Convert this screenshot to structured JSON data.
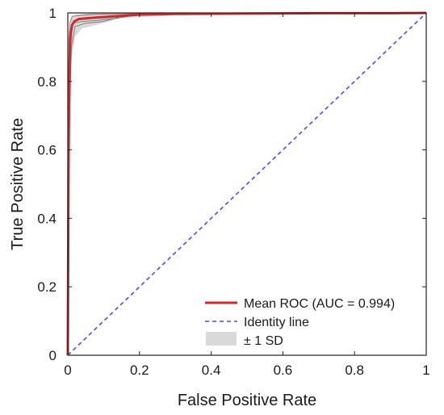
{
  "chart_data": {
    "type": "line",
    "xlabel": "False Positive Rate",
    "ylabel": "True Positive Rate",
    "xlim": [
      0,
      1
    ],
    "ylim": [
      0,
      1
    ],
    "x_ticks": [
      "0",
      "0.2",
      "0.4",
      "0.6",
      "0.8",
      "1"
    ],
    "y_ticks": [
      "0",
      "0.2",
      "0.4",
      "0.6",
      "0.8",
      "1"
    ],
    "grid": false,
    "legend_position": "bottom-right",
    "series": [
      {
        "name": "Mean ROC (AUC = 0.994)",
        "color": "#d62728",
        "style": "solid",
        "x": [
          0,
          0.002,
          0.004,
          0.006,
          0.008,
          0.012,
          0.018,
          0.03,
          0.06,
          0.1,
          0.2,
          0.3,
          0.5,
          0.7,
          0.9,
          1.0
        ],
        "y": [
          0,
          0.55,
          0.8,
          0.9,
          0.94,
          0.965,
          0.975,
          0.982,
          0.985,
          0.988,
          0.995,
          0.997,
          0.998,
          0.999,
          0.999,
          1.0
        ]
      },
      {
        "name": "Identity line",
        "color": "#4a4aff",
        "style": "dashed",
        "x": [
          0,
          1
        ],
        "y": [
          0,
          1
        ]
      },
      {
        "name": "± 1 SD",
        "color": "#d9d9d9",
        "style": "band",
        "x": [
          0,
          0.003,
          0.006,
          0.01,
          0.02,
          0.04,
          0.08,
          0.15,
          0.3,
          0.6,
          1.0
        ],
        "upper": [
          0,
          0.8,
          0.95,
          0.985,
          0.995,
          0.998,
          0.999,
          1.0,
          1.0,
          1.0,
          1.0
        ],
        "lower": [
          0,
          0.35,
          0.7,
          0.86,
          0.93,
          0.955,
          0.965,
          0.985,
          0.993,
          0.996,
          1.0
        ]
      }
    ],
    "fold_lines": {
      "color": "#777777",
      "lines": [
        {
          "x": [
            0,
            0.003,
            0.006,
            0.012,
            0.03,
            0.06,
            0.12,
            0.2,
            0.5,
            1.0
          ],
          "y": [
            0,
            0.92,
            0.97,
            0.99,
            0.992,
            0.995,
            0.997,
            0.998,
            0.999,
            1.0
          ]
        },
        {
          "x": [
            0,
            0.004,
            0.008,
            0.015,
            0.04,
            0.08,
            0.14,
            0.2,
            0.5,
            1.0
          ],
          "y": [
            0,
            0.85,
            0.94,
            0.97,
            0.975,
            0.978,
            0.985,
            0.995,
            0.998,
            1.0
          ]
        },
        {
          "x": [
            0,
            0.005,
            0.01,
            0.02,
            0.05,
            0.1,
            0.15,
            0.25,
            0.5,
            1.0
          ],
          "y": [
            0,
            0.7,
            0.9,
            0.96,
            0.97,
            0.975,
            0.99,
            0.996,
            0.999,
            1.0
          ]
        }
      ]
    }
  }
}
